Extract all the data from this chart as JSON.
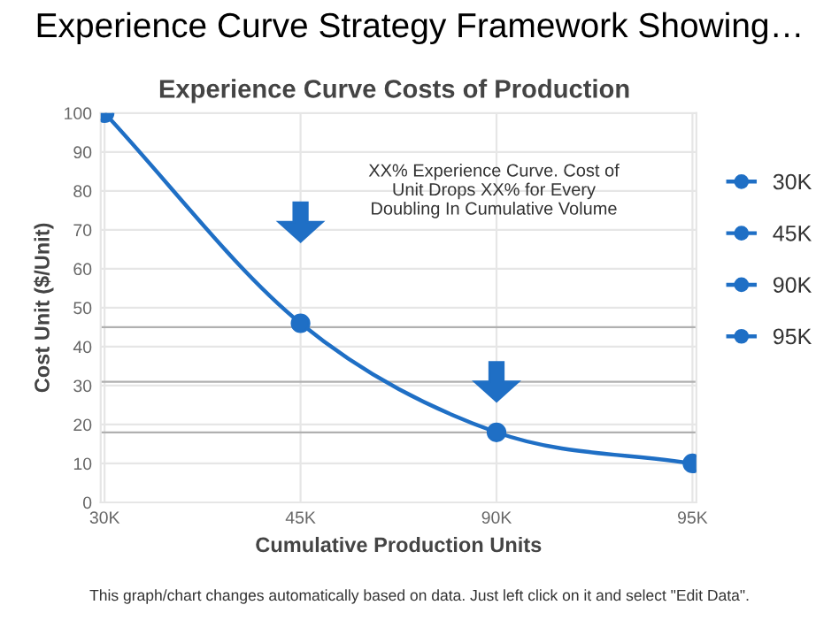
{
  "chart_data": {
    "type": "line",
    "title": "Experience Curve Strategy Framework Showing…",
    "subtitle": "Experience Curve Costs of Production",
    "xlabel": "Cumulative Production Units",
    "ylabel": "Cost Unit ($/Unit)",
    "categories": [
      "30K",
      "45K",
      "90K",
      "95K"
    ],
    "series": [
      {
        "color": "#1f6fc5",
        "values": [
          100,
          46,
          18,
          10
        ],
        "marker": "none"
      },
      {
        "name": "30K",
        "color": "#1f6fc5",
        "values": [
          100,
          null,
          null,
          null
        ]
      },
      {
        "name": "45K",
        "color": "#1f6fc5",
        "values": [
          null,
          46,
          null,
          null
        ]
      },
      {
        "name": "90K",
        "color": "#1f6fc5",
        "values": [
          null,
          null,
          18,
          null
        ]
      },
      {
        "name": "95K",
        "color": "#1f6fc5",
        "values": [
          null,
          null,
          null,
          10
        ]
      }
    ],
    "marker": "circle",
    "ylim": [
      0,
      100
    ],
    "yticks": [
      0,
      10,
      20,
      30,
      40,
      50,
      60,
      70,
      80,
      90,
      100
    ],
    "grid": true,
    "legend": "right",
    "ref_lines": [
      {
        "axis": "y",
        "value": 45,
        "color": "#b0b0b0"
      },
      {
        "axis": "y",
        "value": 31,
        "color": "#b0b0b0"
      },
      {
        "axis": "y",
        "value": 18,
        "color": "#b0b0b0"
      }
    ],
    "annotations": [
      "XX% Experience Curve. Cost of\nUnit Drops XX% for Every\nDoubling In Cumulative Volume",
      "This graph/chart changes automatically based on data. Just left click on it and select \"Edit Data\"."
    ]
  }
}
